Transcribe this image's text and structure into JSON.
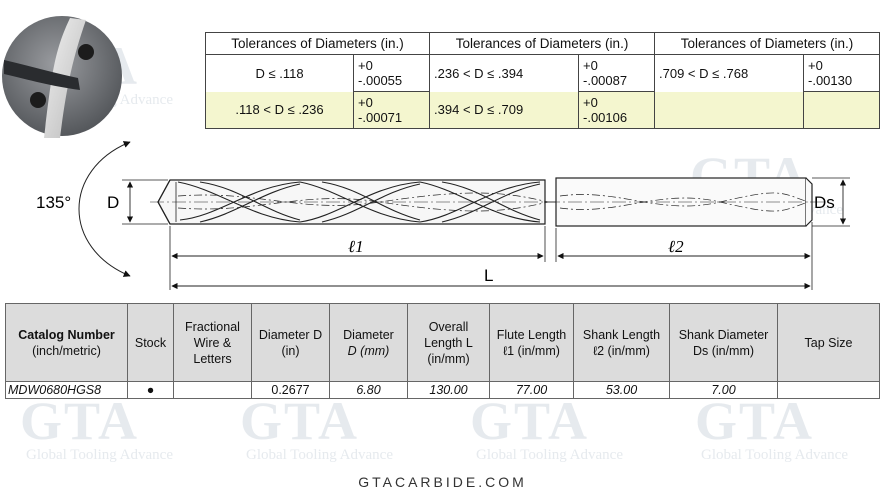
{
  "tolerance_table": {
    "headers": [
      "Tolerances of Diameters (in.)",
      "Tolerances of Diameters (in.)",
      "Tolerances of Diameters (in.)"
    ],
    "rows": [
      {
        "c1_range": "D ≤ .118",
        "c1_tol": [
          "+0",
          "-.00055"
        ],
        "c2_range": ".236 < D ≤ .394",
        "c2_tol": [
          "+0",
          "-.00087"
        ],
        "c3_range": ".709 < D ≤ .768",
        "c3_tol": [
          "+0",
          "-.00130"
        ]
      },
      {
        "c1_range": ".118 < D ≤ .236",
        "c1_tol": [
          "+0",
          "-.00071"
        ],
        "c2_range": ".394 < D ≤ .709",
        "c2_tol": [
          "+0",
          "-.00106"
        ],
        "c3_range": "",
        "c3_tol": [
          "",
          ""
        ]
      }
    ]
  },
  "drawing": {
    "angle_label": "135°",
    "d_label": "D",
    "ds_label": "Ds",
    "l1_label": "ℓ1",
    "l2_label": "ℓ2",
    "l_label": "L"
  },
  "spec_table": {
    "headers": {
      "catalog_number_bold": "Catalog Number",
      "catalog_number_sub": "(inch/metric)",
      "stock": "Stock",
      "fractional": "Fractional Wire & Letters",
      "diameter_in": "Diameter D (in)",
      "diameter_mm_a": "Diameter",
      "diameter_mm_b": "D (mm)",
      "overall_length": "Overall Length L (in/mm)",
      "flute_length": "Flute Length ℓ1 (in/mm)",
      "shank_length": "Shank Length ℓ2 (in/mm)",
      "shank_diameter": "Shank Diameter Ds (in/mm)",
      "tap_size": "Tap Size"
    },
    "rows": [
      {
        "catalog": "MDW0680HGS8",
        "stock": "●",
        "fractional": "",
        "diameter_in": "0.2677",
        "diameter_mm": "6.80",
        "overall_length": "130.00",
        "flute_length": "77.00",
        "shank_length": "53.00",
        "shank_diameter": "7.00",
        "tap_size": ""
      }
    ]
  },
  "watermark": {
    "logo": "GTA",
    "text": "Global Tooling Advance"
  },
  "footer": "GTACARBIDE.COM"
}
